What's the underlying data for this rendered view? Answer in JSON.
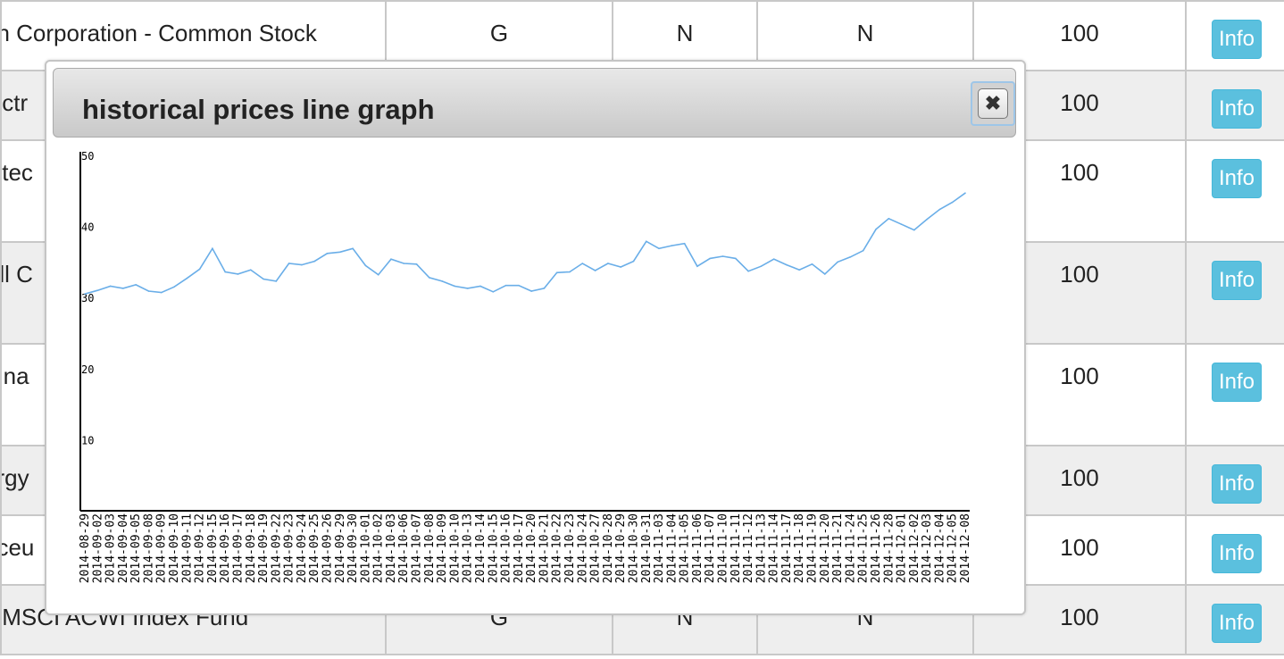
{
  "table": {
    "rows": [
      {
        "name": "an Corporation - Common Stock",
        "c1": "G",
        "c2": "N",
        "c3": "N",
        "qty": "100",
        "btn": "Info"
      },
      {
        "name": "lectr",
        "c1": "",
        "c2": "",
        "c3": "",
        "qty": "100",
        "btn": "Info"
      },
      {
        "name": "iotec",
        "c1": "",
        "c2": "",
        "c3": "",
        "qty": "100",
        "btn": "Info"
      },
      {
        "name": " All C",
        "c1": "",
        "c2": "",
        "c3": "",
        "qty": "100",
        "btn": "Info"
      },
      {
        "name": " Fina",
        "c1": "",
        "c2": "",
        "c3": "",
        "qty": "100",
        "btn": "Info"
      },
      {
        "name": "ergy",
        "c1": "",
        "c2": "",
        "c3": "",
        "qty": "100",
        "btn": "Info"
      },
      {
        "name": "aceu",
        "c1": "",
        "c2": "",
        "c3": "",
        "qty": "100",
        "btn": "Info"
      },
      {
        "name": "s MSCI ACWI Index Fund",
        "c1": "G",
        "c2": "N",
        "c3": "N",
        "qty": "100",
        "btn": "Info"
      }
    ]
  },
  "modal": {
    "title": "historical prices line graph",
    "close_symbol": "✖"
  },
  "chart_data": {
    "type": "line",
    "title": "",
    "xlabel": "",
    "ylabel": "",
    "ylim": [
      0,
      50
    ],
    "yticks": [
      "10",
      "20",
      "30",
      "40",
      "50"
    ],
    "line_color": "#6aaee8",
    "x": [
      "2014-08-29",
      "2014-09-02",
      "2014-09-03",
      "2014-09-04",
      "2014-09-05",
      "2014-09-08",
      "2014-09-09",
      "2014-09-10",
      "2014-09-11",
      "2014-09-12",
      "2014-09-15",
      "2014-09-16",
      "2014-09-17",
      "2014-09-18",
      "2014-09-19",
      "2014-09-22",
      "2014-09-23",
      "2014-09-24",
      "2014-09-25",
      "2014-09-26",
      "2014-09-29",
      "2014-09-30",
      "2014-10-01",
      "2014-10-02",
      "2014-10-03",
      "2014-10-06",
      "2014-10-07",
      "2014-10-08",
      "2014-10-09",
      "2014-10-10",
      "2014-10-13",
      "2014-10-14",
      "2014-10-15",
      "2014-10-16",
      "2014-10-17",
      "2014-10-20",
      "2014-10-21",
      "2014-10-22",
      "2014-10-23",
      "2014-10-24",
      "2014-10-27",
      "2014-10-28",
      "2014-10-29",
      "2014-10-30",
      "2014-10-31",
      "2014-11-03",
      "2014-11-04",
      "2014-11-05",
      "2014-11-06",
      "2014-11-07",
      "2014-11-10",
      "2014-11-11",
      "2014-11-12",
      "2014-11-13",
      "2014-11-14",
      "2014-11-17",
      "2014-11-18",
      "2014-11-19",
      "2014-11-20",
      "2014-11-21",
      "2014-11-24",
      "2014-11-25",
      "2014-11-26",
      "2014-11-28",
      "2014-12-01",
      "2014-12-02",
      "2014-12-03",
      "2014-12-04",
      "2014-12-05",
      "2014-12-08"
    ],
    "values": [
      30.5,
      31.0,
      31.6,
      31.3,
      31.8,
      30.9,
      30.7,
      31.5,
      32.7,
      34.0,
      36.9,
      33.6,
      33.3,
      33.9,
      32.6,
      32.3,
      34.8,
      34.6,
      35.1,
      36.2,
      36.4,
      36.9,
      34.5,
      33.2,
      35.4,
      34.8,
      34.7,
      32.8,
      32.3,
      31.6,
      31.3,
      31.6,
      30.8,
      31.7,
      31.7,
      30.9,
      31.3,
      33.5,
      33.6,
      34.8,
      33.8,
      34.8,
      34.3,
      35.1,
      37.9,
      36.9,
      37.3,
      37.6,
      34.4,
      35.5,
      35.8,
      35.5,
      33.7,
      34.4,
      35.4,
      34.6,
      33.9,
      34.7,
      33.3,
      35.0,
      35.7,
      36.6,
      39.6,
      41.1,
      40.3,
      39.5,
      41.0,
      42.4,
      43.4,
      44.7
    ]
  }
}
